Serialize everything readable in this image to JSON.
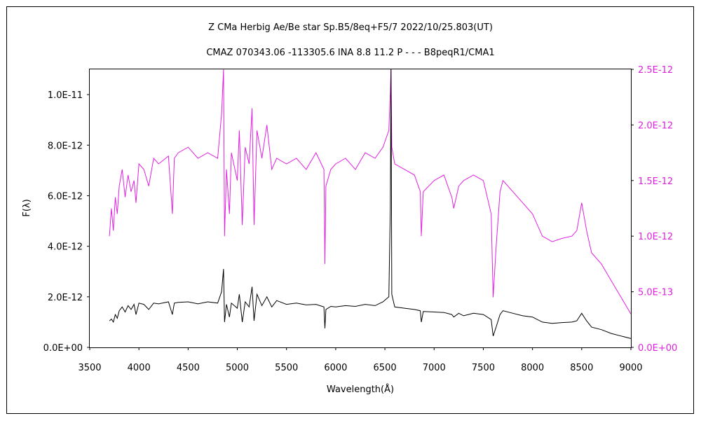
{
  "chart_data": {
    "type": "line",
    "title": "Z CMa    Herbig Ae/Be star    Sp.B5/8eq+F5/7    2022/10/25.803(UT)",
    "subtitle": "CMAZ 070343.06 -113305.6 INA 8.8 11.2 P - - - B8peqR1/CMA1",
    "xlabel": "Wavelength(Å)",
    "ylabel": "F(λ)",
    "xlim": [
      3500,
      9000
    ],
    "ylim_left": [
      0,
      1.1e-11
    ],
    "ylim_right": [
      0,
      2.5e-12
    ],
    "x_ticks": [
      "3500",
      "4000",
      "4500",
      "5000",
      "5500",
      "6000",
      "6500",
      "7000",
      "7500",
      "8000",
      "8500",
      "9000"
    ],
    "y_ticks_left": [
      {
        "label": "0.0E+00",
        "value": 0
      },
      {
        "label": "2.0E-12",
        "value": 2e-12
      },
      {
        "label": "4.0E-12",
        "value": 4e-12
      },
      {
        "label": "6.0E-12",
        "value": 6e-12
      },
      {
        "label": "8.0E-12",
        "value": 8e-12
      },
      {
        "label": "1.0E-11",
        "value": 1e-11
      }
    ],
    "y_ticks_right": [
      {
        "label": "0.0E+00",
        "value": 0
      },
      {
        "label": "5.0E-13",
        "value": 5e-13
      },
      {
        "label": "1.0E-12",
        "value": 1e-12
      },
      {
        "label": "1.5E-12",
        "value": 1.5e-12
      },
      {
        "label": "2.0E-12",
        "value": 2e-12
      },
      {
        "label": "2.5E-12",
        "value": 2.5e-12
      }
    ],
    "grid": false,
    "series": [
      {
        "axis": "left",
        "color": "#000000",
        "points": [
          [
            3700,
            1.05e-12
          ],
          [
            3720,
            1.12e-12
          ],
          [
            3740,
            1e-12
          ],
          [
            3760,
            1.3e-12
          ],
          [
            3780,
            1.15e-12
          ],
          [
            3800,
            1.45e-12
          ],
          [
            3830,
            1.6e-12
          ],
          [
            3860,
            1.4e-12
          ],
          [
            3890,
            1.65e-12
          ],
          [
            3920,
            1.5e-12
          ],
          [
            3950,
            1.7e-12
          ],
          [
            3970,
            1.3e-12
          ],
          [
            4000,
            1.75e-12
          ],
          [
            4050,
            1.7e-12
          ],
          [
            4100,
            1.5e-12
          ],
          [
            4150,
            1.75e-12
          ],
          [
            4200,
            1.72e-12
          ],
          [
            4300,
            1.8e-12
          ],
          [
            4340,
            1.3e-12
          ],
          [
            4360,
            1.75e-12
          ],
          [
            4400,
            1.78e-12
          ],
          [
            4500,
            1.8e-12
          ],
          [
            4600,
            1.72e-12
          ],
          [
            4700,
            1.8e-12
          ],
          [
            4800,
            1.75e-12
          ],
          [
            4840,
            2.2e-12
          ],
          [
            4860,
            3.1e-12
          ],
          [
            4870,
            1e-12
          ],
          [
            4890,
            1.7e-12
          ],
          [
            4920,
            1.2e-12
          ],
          [
            4940,
            1.75e-12
          ],
          [
            5000,
            1.55e-12
          ],
          [
            5020,
            2.1e-12
          ],
          [
            5050,
            1e-12
          ],
          [
            5080,
            1.8e-12
          ],
          [
            5120,
            1.6e-12
          ],
          [
            5150,
            2.4e-12
          ],
          [
            5170,
            1.05e-12
          ],
          [
            5200,
            2.1e-12
          ],
          [
            5250,
            1.65e-12
          ],
          [
            5300,
            2e-12
          ],
          [
            5350,
            1.6e-12
          ],
          [
            5400,
            1.85e-12
          ],
          [
            5500,
            1.7e-12
          ],
          [
            5600,
            1.75e-12
          ],
          [
            5700,
            1.68e-12
          ],
          [
            5800,
            1.7e-12
          ],
          [
            5880,
            1.6e-12
          ],
          [
            5890,
            7.5e-13
          ],
          [
            5900,
            1.5e-12
          ],
          [
            5950,
            1.62e-12
          ],
          [
            6000,
            1.6e-12
          ],
          [
            6100,
            1.65e-12
          ],
          [
            6200,
            1.62e-12
          ],
          [
            6300,
            1.7e-12
          ],
          [
            6400,
            1.65e-12
          ],
          [
            6480,
            1.8e-12
          ],
          [
            6540,
            2e-12
          ],
          [
            6555,
            5.5e-12
          ],
          [
            6562,
            1.1e-11
          ],
          [
            6570,
            2.1e-12
          ],
          [
            6600,
            1.6e-12
          ],
          [
            6700,
            1.55e-12
          ],
          [
            6800,
            1.5e-12
          ],
          [
            6860,
            1.45e-12
          ],
          [
            6870,
            1e-12
          ],
          [
            6890,
            1.42e-12
          ],
          [
            7000,
            1.4e-12
          ],
          [
            7100,
            1.38e-12
          ],
          [
            7180,
            1.3e-12
          ],
          [
            7200,
            1.2e-12
          ],
          [
            7250,
            1.35e-12
          ],
          [
            7300,
            1.25e-12
          ],
          [
            7400,
            1.35e-12
          ],
          [
            7500,
            1.3e-12
          ],
          [
            7580,
            1.1e-12
          ],
          [
            7600,
            4.5e-13
          ],
          [
            7630,
            8e-13
          ],
          [
            7670,
            1.3e-12
          ],
          [
            7700,
            1.45e-12
          ],
          [
            7800,
            1.35e-12
          ],
          [
            7900,
            1.25e-12
          ],
          [
            8000,
            1.2e-12
          ],
          [
            8100,
            1e-12
          ],
          [
            8200,
            9.5e-13
          ],
          [
            8300,
            9.8e-13
          ],
          [
            8400,
            1e-12
          ],
          [
            8450,
            1.05e-12
          ],
          [
            8500,
            1.35e-12
          ],
          [
            8550,
            1.05e-12
          ],
          [
            8600,
            8e-13
          ],
          [
            8700,
            7e-13
          ],
          [
            8800,
            5.5e-13
          ],
          [
            8900,
            4.5e-13
          ],
          [
            9000,
            3.5e-13
          ]
        ]
      },
      {
        "axis": "right",
        "color": "#e020e0",
        "points": [
          [
            3700,
            1e-12
          ],
          [
            3720,
            1.25e-12
          ],
          [
            3740,
            1.05e-12
          ],
          [
            3760,
            1.35e-12
          ],
          [
            3780,
            1.2e-12
          ],
          [
            3800,
            1.45e-12
          ],
          [
            3830,
            1.6e-12
          ],
          [
            3860,
            1.35e-12
          ],
          [
            3890,
            1.55e-12
          ],
          [
            3920,
            1.4e-12
          ],
          [
            3950,
            1.5e-12
          ],
          [
            3970,
            1.3e-12
          ],
          [
            4000,
            1.65e-12
          ],
          [
            4050,
            1.6e-12
          ],
          [
            4100,
            1.45e-12
          ],
          [
            4150,
            1.7e-12
          ],
          [
            4200,
            1.65e-12
          ],
          [
            4300,
            1.72e-12
          ],
          [
            4340,
            1.2e-12
          ],
          [
            4360,
            1.7e-12
          ],
          [
            4400,
            1.75e-12
          ],
          [
            4500,
            1.8e-12
          ],
          [
            4600,
            1.7e-12
          ],
          [
            4700,
            1.75e-12
          ],
          [
            4800,
            1.7e-12
          ],
          [
            4840,
            2.1e-12
          ],
          [
            4860,
            2.5e-12
          ],
          [
            4870,
            1e-12
          ],
          [
            4890,
            1.6e-12
          ],
          [
            4920,
            1.2e-12
          ],
          [
            4940,
            1.75e-12
          ],
          [
            5000,
            1.5e-12
          ],
          [
            5020,
            1.95e-12
          ],
          [
            5050,
            1.1e-12
          ],
          [
            5080,
            1.8e-12
          ],
          [
            5120,
            1.65e-12
          ],
          [
            5150,
            2.15e-12
          ],
          [
            5170,
            1.1e-12
          ],
          [
            5200,
            1.95e-12
          ],
          [
            5250,
            1.7e-12
          ],
          [
            5300,
            2e-12
          ],
          [
            5350,
            1.6e-12
          ],
          [
            5400,
            1.7e-12
          ],
          [
            5500,
            1.65e-12
          ],
          [
            5600,
            1.7e-12
          ],
          [
            5700,
            1.6e-12
          ],
          [
            5800,
            1.75e-12
          ],
          [
            5880,
            1.6e-12
          ],
          [
            5890,
            7.5e-13
          ],
          [
            5900,
            1.45e-12
          ],
          [
            5950,
            1.6e-12
          ],
          [
            6000,
            1.65e-12
          ],
          [
            6100,
            1.7e-12
          ],
          [
            6200,
            1.6e-12
          ],
          [
            6300,
            1.75e-12
          ],
          [
            6400,
            1.7e-12
          ],
          [
            6480,
            1.8e-12
          ],
          [
            6540,
            1.95e-12
          ],
          [
            6555,
            2.3e-12
          ],
          [
            6562,
            2.5e-12
          ],
          [
            6570,
            1.8e-12
          ],
          [
            6600,
            1.65e-12
          ],
          [
            6700,
            1.6e-12
          ],
          [
            6800,
            1.55e-12
          ],
          [
            6860,
            1.4e-12
          ],
          [
            6870,
            1e-12
          ],
          [
            6890,
            1.4e-12
          ],
          [
            7000,
            1.5e-12
          ],
          [
            7100,
            1.55e-12
          ],
          [
            7180,
            1.35e-12
          ],
          [
            7200,
            1.25e-12
          ],
          [
            7250,
            1.45e-12
          ],
          [
            7300,
            1.5e-12
          ],
          [
            7400,
            1.55e-12
          ],
          [
            7500,
            1.5e-12
          ],
          [
            7580,
            1.2e-12
          ],
          [
            7600,
            4.5e-13
          ],
          [
            7630,
            9e-13
          ],
          [
            7670,
            1.4e-12
          ],
          [
            7700,
            1.5e-12
          ],
          [
            7800,
            1.4e-12
          ],
          [
            7900,
            1.3e-12
          ],
          [
            8000,
            1.2e-12
          ],
          [
            8100,
            1e-12
          ],
          [
            8200,
            9.5e-13
          ],
          [
            8300,
            9.8e-13
          ],
          [
            8400,
            1e-12
          ],
          [
            8450,
            1.05e-12
          ],
          [
            8500,
            1.3e-12
          ],
          [
            8550,
            1.05e-12
          ],
          [
            8600,
            8.5e-13
          ],
          [
            8700,
            7.5e-13
          ],
          [
            8800,
            6e-13
          ],
          [
            8900,
            4.5e-13
          ],
          [
            9000,
            3e-13
          ]
        ]
      }
    ]
  }
}
